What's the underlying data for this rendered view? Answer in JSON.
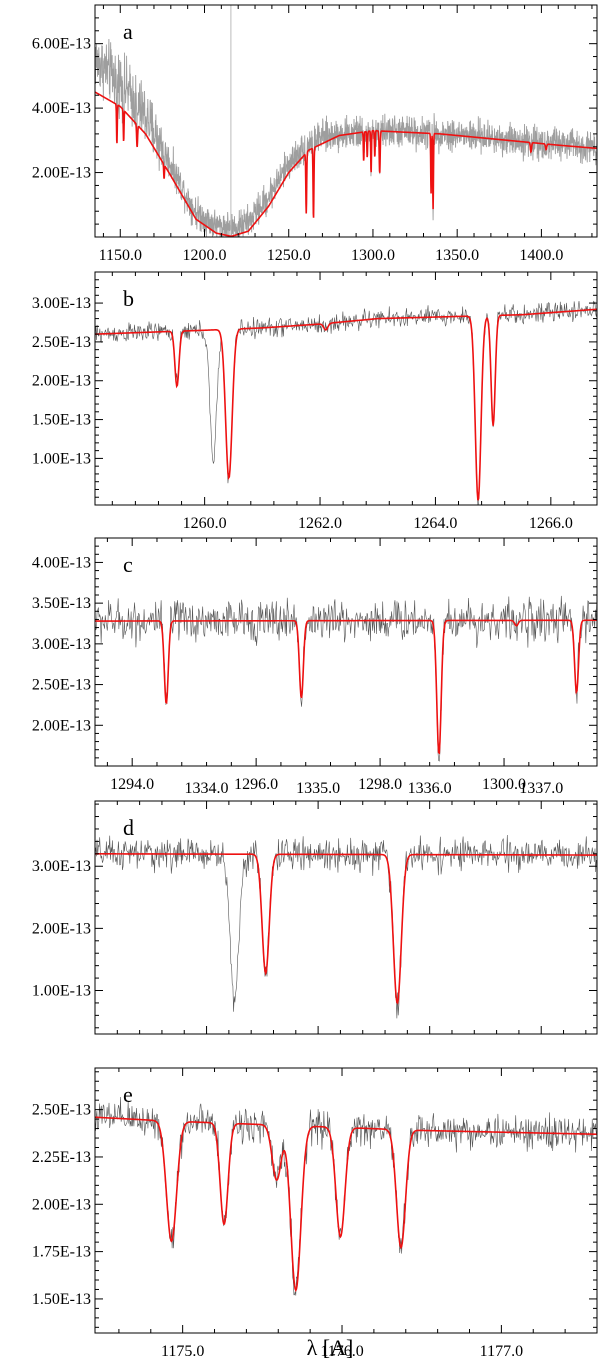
{
  "colors": {
    "observed": "#9e9e9e",
    "observed_dark": "#555555",
    "model": "#ee1111",
    "axis": "#000000"
  },
  "x_axis_title": "λ  [A]",
  "chart_data": [
    {
      "panel": "a",
      "type": "line",
      "xlim": [
        1135,
        1433
      ],
      "ylim": [
        0,
        7.2e-13
      ],
      "x_ticks": [
        1150,
        1200,
        1250,
        1300,
        1350,
        1400
      ],
      "x_tick_labels": [
        "1150.0",
        "1200.0",
        "1250.0",
        "1300.0",
        "1350.0",
        "1400.0"
      ],
      "y_ticks": [
        2e-13,
        4e-13,
        6e-13
      ],
      "y_tick_labels": [
        "2.00E-13",
        "4.00E-13",
        "6.00E-13"
      ],
      "continuum": [
        [
          1135,
          4.5e-13
        ],
        [
          1150,
          4.05e-13
        ],
        [
          1165,
          3.2e-13
        ],
        [
          1180,
          1.9e-13
        ],
        [
          1195,
          5.5e-14
        ],
        [
          1207,
          1.2e-14
        ],
        [
          1216,
          2e-15
        ],
        [
          1226,
          1.8e-14
        ],
        [
          1238,
          9.5e-14
        ],
        [
          1250,
          2e-13
        ],
        [
          1262,
          2.7e-13
        ],
        [
          1280,
          3.15e-13
        ],
        [
          1300,
          3.3e-13
        ],
        [
          1340,
          3.2e-13
        ],
        [
          1380,
          3e-13
        ],
        [
          1410,
          2.85e-13
        ],
        [
          1433,
          2.75e-13
        ]
      ],
      "lines": [
        [
          1148,
          0.3,
          0.3
        ],
        [
          1152,
          0.25,
          0.3
        ],
        [
          1160,
          0.2,
          0.4
        ],
        [
          1176,
          0.2,
          0.3
        ],
        [
          1260.4,
          0.72,
          0.35
        ],
        [
          1264.7,
          0.8,
          0.35
        ],
        [
          1294.5,
          0.28,
          0.3
        ],
        [
          1296.6,
          0.25,
          0.3
        ],
        [
          1298.9,
          0.4,
          0.3
        ],
        [
          1301.1,
          0.25,
          0.3
        ],
        [
          1304,
          0.4,
          0.4
        ],
        [
          1334.5,
          0.58,
          0.3
        ],
        [
          1335.7,
          0.73,
          0.3
        ],
        [
          1393.8,
          0.1,
          0.5
        ],
        [
          1402.8,
          0.06,
          0.5
        ]
      ],
      "noise": {
        "amp": 5.5e-14,
        "amp_at_high_flux": 1e-13,
        "step": 0.15
      },
      "observed_offset": [
        [
          1135,
          1e-13
        ],
        [
          1190,
          2e-14
        ],
        [
          1240,
          3e-14
        ],
        [
          1270,
          2e-14
        ],
        [
          1285,
          0.0
        ],
        [
          1433,
          5e-15
        ]
      ],
      "lya_spike": 1215.67
    },
    {
      "panel": "b",
      "type": "line",
      "xlim": [
        1258.1,
        1266.8
      ],
      "ylim": [
        4e-14,
        3.4e-13
      ],
      "x_ticks": [
        1260,
        1262,
        1264,
        1266
      ],
      "x_tick_labels": [
        "1260.0",
        "1262.0",
        "1264.0",
        "1266.0"
      ],
      "y_ticks": [
        1e-13,
        1.5e-13,
        2e-13,
        2.5e-13,
        3e-13
      ],
      "y_tick_labels": [
        "1.00E-13",
        "1.50E-13",
        "2.00E-13",
        "2.50E-13",
        "3.00E-13"
      ],
      "continuum": [
        [
          1258.1,
          2.6e-13
        ],
        [
          1260,
          2.65e-13
        ],
        [
          1261,
          2.68e-13
        ],
        [
          1262,
          2.73e-13
        ],
        [
          1263,
          2.8e-13
        ],
        [
          1264,
          2.82e-13
        ],
        [
          1265.5,
          2.85e-13
        ],
        [
          1266.8,
          2.92e-13
        ]
      ],
      "lines": [
        [
          1259.52,
          0.27,
          0.05
        ],
        [
          1260.42,
          0.72,
          0.08
        ],
        [
          1262.1,
          0.03,
          0.05
        ],
        [
          1264.74,
          0.84,
          0.07
        ],
        [
          1265.0,
          0.5,
          0.05
        ]
      ],
      "obs_lines": [
        [
          1260.15,
          0.65,
          0.08
        ]
      ],
      "noise": {
        "amp": 1.4e-14,
        "step": 0.012
      }
    },
    {
      "panel": "c",
      "type": "line",
      "xlim": [
        1293.4,
        1301.5
      ],
      "ylim": [
        1.5e-13,
        4.3e-13
      ],
      "x_ticks": [
        1294,
        1296,
        1298,
        1300
      ],
      "x_tick_labels": [
        "1294.0",
        "1296.0",
        "1298.0",
        "1300.0"
      ],
      "y_ticks": [
        2e-13,
        2.5e-13,
        3e-13,
        3.5e-13,
        4e-13
      ],
      "y_tick_labels": [
        "2.00E-13",
        "2.50E-13",
        "3.00E-13",
        "3.50E-13",
        "4.00E-13"
      ],
      "continuum": [
        [
          1293.4,
          3.28e-13
        ],
        [
          1301.5,
          3.29e-13
        ]
      ],
      "lines": [
        [
          1294.55,
          0.31,
          0.045
        ],
        [
          1296.73,
          0.29,
          0.045
        ],
        [
          1298.95,
          0.5,
          0.05
        ],
        [
          1300.2,
          0.02,
          0.04
        ],
        [
          1301.17,
          0.27,
          0.045
        ]
      ],
      "noise": {
        "amp": 2.8e-14,
        "step": 0.011
      }
    },
    {
      "panel": "d",
      "type": "line",
      "xlim": [
        1333.0,
        1337.5
      ],
      "ylim": [
        3e-14,
        4.05e-13
      ],
      "x_ticks": [
        1334,
        1335,
        1336,
        1337
      ],
      "x_tick_labels": [
        "1334.0",
        "1335.0",
        "1336.0",
        "1337.0"
      ],
      "y_ticks": [
        1e-13,
        2e-13,
        3e-13
      ],
      "y_tick_labels": [
        "1.00E-13",
        "2.00E-13",
        "3.00E-13"
      ],
      "continuum": [
        [
          1333.0,
          3.2e-13
        ],
        [
          1337.5,
          3.18e-13
        ]
      ],
      "lines": [
        [
          1334.53,
          0.6,
          0.045
        ],
        [
          1335.71,
          0.75,
          0.05
        ]
      ],
      "obs_lines": [
        [
          1334.25,
          0.73,
          0.055
        ]
      ],
      "noise": {
        "amp": 2.8e-14,
        "step": 0.006
      }
    },
    {
      "panel": "e",
      "type": "line",
      "xlim": [
        1174.45,
        1177.6
      ],
      "ylim": [
        1.32e-13,
        2.72e-13
      ],
      "x_ticks": [
        1175,
        1176,
        1177
      ],
      "x_tick_labels": [
        "1175.0",
        "1176.0",
        "1177.0"
      ],
      "y_ticks": [
        1.5e-13,
        1.75e-13,
        2e-13,
        2.25e-13,
        2.5e-13
      ],
      "y_tick_labels": [
        "1.50E-13",
        "1.75E-13",
        "2.00E-13",
        "2.25E-13",
        "2.50E-13"
      ],
      "continuum": [
        [
          1174.45,
          2.46e-13
        ],
        [
          1174.9,
          2.44e-13
        ],
        [
          1176.5,
          2.39e-13
        ],
        [
          1177.6,
          2.37e-13
        ]
      ],
      "lines": [
        [
          1174.93,
          0.26,
          0.045
        ],
        [
          1175.26,
          0.22,
          0.035
        ],
        [
          1175.59,
          0.12,
          0.04
        ],
        [
          1175.71,
          0.36,
          0.045
        ],
        [
          1175.99,
          0.24,
          0.04
        ],
        [
          1176.37,
          0.26,
          0.04
        ]
      ],
      "noise": {
        "amp": 1e-14,
        "step": 0.004
      }
    }
  ]
}
